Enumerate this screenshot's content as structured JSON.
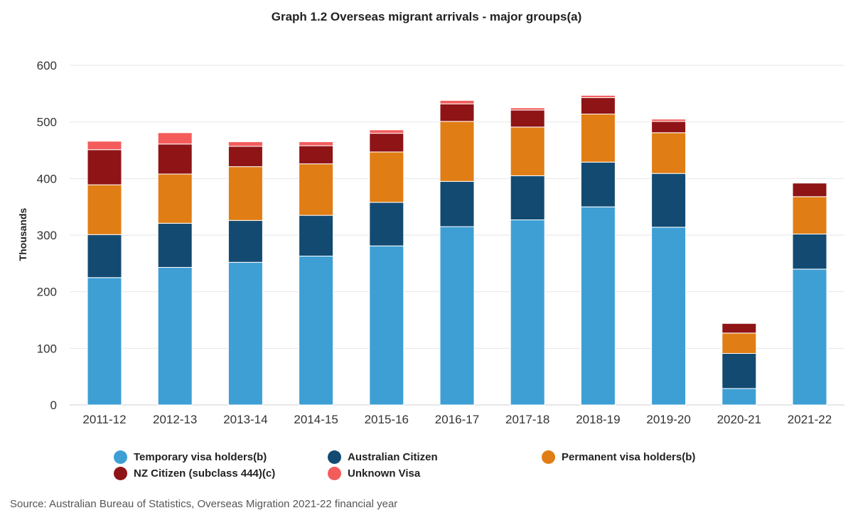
{
  "chart_data": {
    "type": "bar",
    "stacked": true,
    "title": "Graph 1.2 Overseas migrant arrivals - major groups(a)",
    "xlabel": "",
    "ylabel": "Thousands",
    "ylim": [
      0,
      600
    ],
    "yticks": [
      0,
      100,
      200,
      300,
      400,
      500,
      600
    ],
    "categories": [
      "2011-12",
      "2012-13",
      "2013-14",
      "2014-15",
      "2015-16",
      "2016-17",
      "2017-18",
      "2018-19",
      "2019-20",
      "2020-21",
      "2021-22"
    ],
    "series": [
      {
        "name": "Temporary visa holders(b)",
        "color": "#3e9fd5",
        "values": [
          225,
          243,
          252,
          263,
          281,
          315,
          327,
          350,
          314,
          29,
          240
        ]
      },
      {
        "name": "Australian Citizen",
        "color": "#134a72",
        "values": [
          76,
          78,
          74,
          72,
          77,
          80,
          78,
          79,
          95,
          62,
          62
        ]
      },
      {
        "name": "Permanent visa holders(b)",
        "color": "#e07d14",
        "values": [
          88,
          87,
          95,
          91,
          89,
          106,
          86,
          85,
          72,
          36,
          66
        ]
      },
      {
        "name": "NZ Citizen (subclass 444)(c)",
        "color": "#8f1416",
        "values": [
          62,
          53,
          36,
          32,
          33,
          31,
          30,
          29,
          20,
          17,
          24
        ]
      },
      {
        "name": "Unknown Visa",
        "color": "#f45c5c",
        "values": [
          15,
          20,
          8,
          7,
          6,
          6,
          4,
          4,
          4,
          0,
          0
        ]
      }
    ],
    "grid": true,
    "legend_position": "bottom"
  },
  "source": "Source: Australian Bureau of Statistics, Overseas Migration 2021-22 financial year"
}
